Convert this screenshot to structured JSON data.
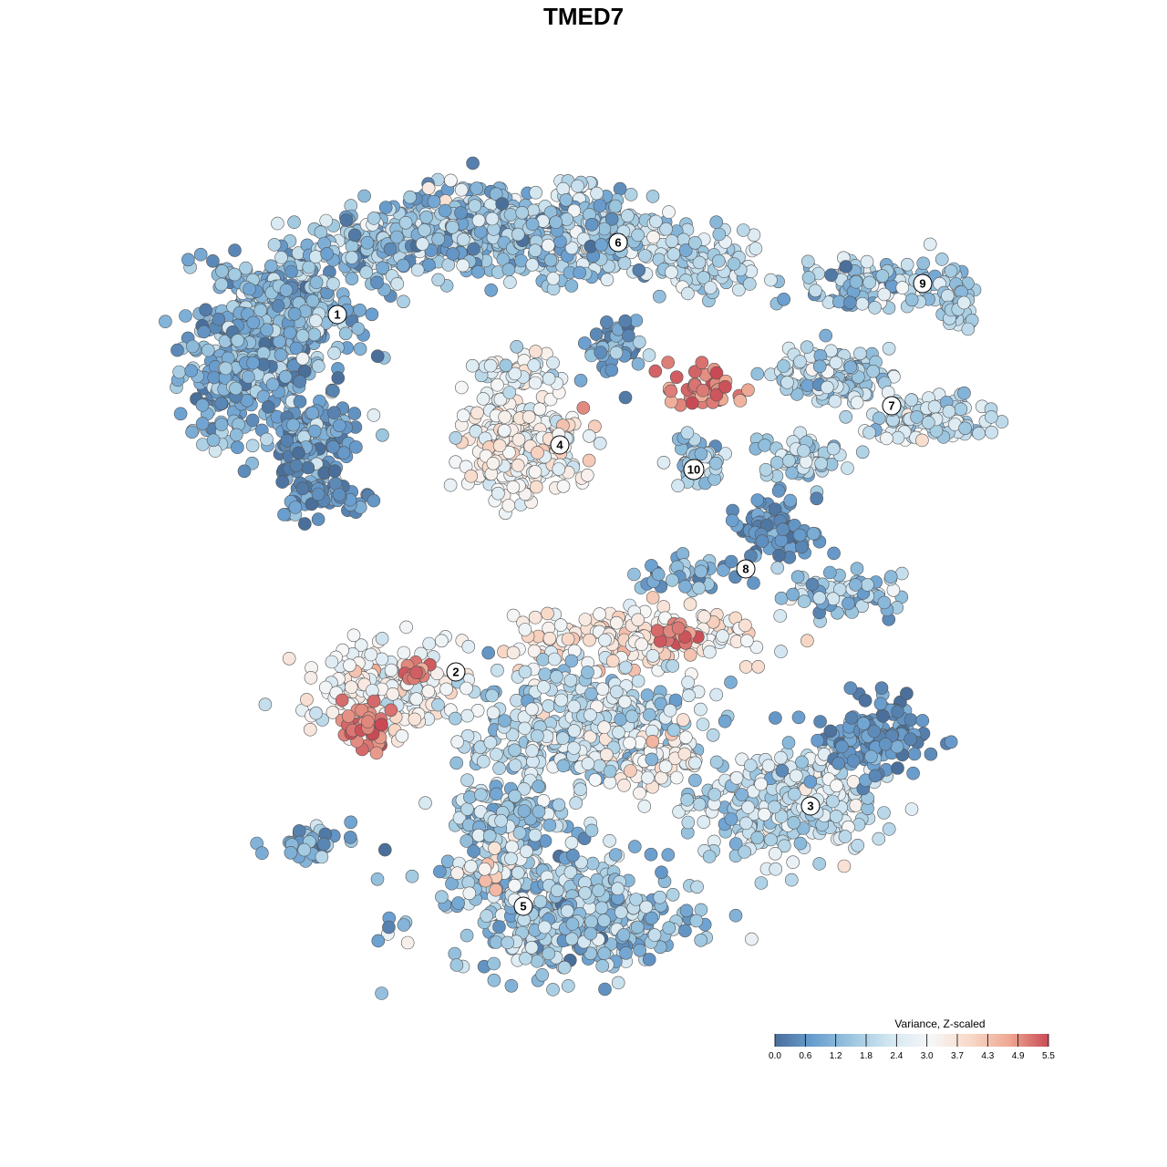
{
  "chart_data": {
    "type": "scatter",
    "title": "TMED7",
    "legend": {
      "title": "Variance, Z-scaled",
      "placement": "bottom-right",
      "ticks": [
        "0.0",
        "0.6",
        "1.2",
        "1.8",
        "2.4",
        "3.0",
        "3.7",
        "4.3",
        "4.9",
        "5.5"
      ],
      "range": [
        0.0,
        5.5
      ],
      "colors": [
        "#4a6f9a",
        "#6a9fd0",
        "#9ec8e0",
        "#d6e8f2",
        "#f7f7f7",
        "#f8d9c8",
        "#eea893",
        "#c94a55"
      ]
    },
    "clusters": [
      {
        "label": "1",
        "x": 0.0,
        "y": 0.0
      },
      {
        "label": "2",
        "x": 0.0,
        "y": 0.0
      },
      {
        "label": "3",
        "x": 0.0,
        "y": 0.0
      },
      {
        "label": "4",
        "x": 0.0,
        "y": 0.0
      },
      {
        "label": "5",
        "x": 0.0,
        "y": 0.0
      },
      {
        "label": "6",
        "x": 0.0,
        "y": 0.0
      },
      {
        "label": "7",
        "x": 0.0,
        "y": 0.0
      },
      {
        "label": "8",
        "x": 0.0,
        "y": 0.0
      },
      {
        "label": "9",
        "x": 0.0,
        "y": 0.0
      },
      {
        "label": "10",
        "x": 0.0,
        "y": 0.0
      }
    ]
  }
}
